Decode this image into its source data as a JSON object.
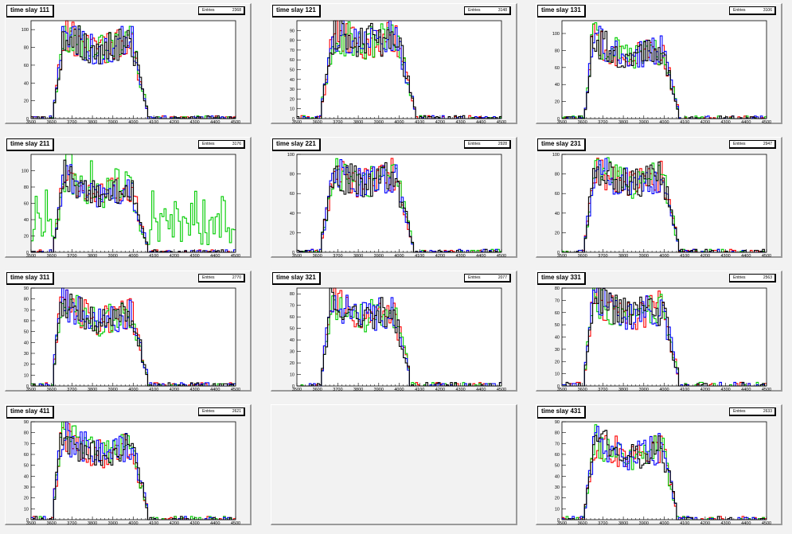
{
  "chart_data": [
    {
      "type": "histogram",
      "title": "time slay 111",
      "stats_label": "Entries",
      "entries": "2368",
      "xlim": [
        3500,
        4500
      ],
      "ylim": [
        0,
        110
      ],
      "xticks": [
        "3500",
        "3600",
        "3700",
        "3800",
        "3900",
        "4000",
        "4100",
        "4200",
        "4300",
        "4400",
        "4500"
      ],
      "yticks": [
        "0",
        "20",
        "40",
        "60",
        "80",
        "100"
      ],
      "profile": {
        "rise_start": 3605,
        "rise_end": 3660,
        "plateau": [
          95,
          75,
          90
        ],
        "fall_start": 3990,
        "fall_end": 4070,
        "tail": 3,
        "dip": 0
      },
      "series_colors": [
        "#ff0000",
        "#00cc00",
        "#0000ff",
        "#000000"
      ]
    },
    {
      "type": "histogram",
      "title": "time slay 121",
      "stats_label": "Entries",
      "entries": "3148",
      "xlim": [
        3500,
        4500
      ],
      "ylim": [
        0,
        100
      ],
      "xticks": [
        "3500",
        "3600",
        "3700",
        "3800",
        "3900",
        "4000",
        "4100",
        "4200",
        "4300",
        "4400",
        "4500"
      ],
      "yticks": [
        "0",
        "10",
        "20",
        "30",
        "40",
        "50",
        "60",
        "70",
        "80",
        "90"
      ],
      "profile": {
        "rise_start": 3610,
        "rise_end": 3680,
        "plateau": [
          85,
          78,
          85
        ],
        "fall_start": 3990,
        "fall_end": 4080,
        "tail": 2,
        "dip": 0
      },
      "series_colors": [
        "#ff0000",
        "#00cc00",
        "#0000ff",
        "#000000"
      ]
    },
    {
      "type": "histogram",
      "title": "time slay 131",
      "stats_label": "Entries",
      "entries": "3106",
      "xlim": [
        3500,
        4500
      ],
      "ylim": [
        0,
        115
      ],
      "xticks": [
        "3500",
        "3600",
        "3700",
        "3800",
        "3900",
        "4000",
        "4100",
        "4200",
        "4300",
        "4400",
        "4500"
      ],
      "yticks": [
        "0",
        "20",
        "40",
        "60",
        "80",
        "100"
      ],
      "profile": {
        "rise_start": 3610,
        "rise_end": 3650,
        "plateau": [
          95,
          70,
          80
        ],
        "fall_start": 3990,
        "fall_end": 4070,
        "tail": 3,
        "dip": 0
      },
      "series_colors": [
        "#ff0000",
        "#00cc00",
        "#0000ff",
        "#000000"
      ]
    },
    {
      "type": "histogram",
      "title": "time slay 211",
      "stats_label": "Entries",
      "entries": "3176",
      "xlim": [
        3500,
        4500
      ],
      "ylim": [
        0,
        120
      ],
      "xticks": [
        "3500",
        "3600",
        "3700",
        "3800",
        "3900",
        "4000",
        "4100",
        "4200",
        "4300",
        "4400",
        "4500"
      ],
      "yticks": [
        "0",
        "20",
        "40",
        "60",
        "80",
        "100"
      ],
      "profile": {
        "rise_start": 3605,
        "rise_end": 3660,
        "plateau": [
          95,
          70,
          80
        ],
        "fall_start": 3990,
        "fall_end": 4070,
        "tail": 2,
        "dip": 0
      },
      "noisy_series": 1,
      "series_colors": [
        "#ff0000",
        "#00cc00",
        "#0000ff",
        "#000000"
      ]
    },
    {
      "type": "histogram",
      "title": "time slay 221",
      "stats_label": "Entries",
      "entries": "2928",
      "xlim": [
        3500,
        4500
      ],
      "ylim": [
        0,
        100
      ],
      "xticks": [
        "3500",
        "3600",
        "3700",
        "3800",
        "3900",
        "4000",
        "4100",
        "4200",
        "4300",
        "4400",
        "4500"
      ],
      "yticks": [
        "0",
        "20",
        "40",
        "60",
        "80",
        "100"
      ],
      "profile": {
        "rise_start": 3610,
        "rise_end": 3680,
        "plateau": [
          80,
          70,
          80
        ],
        "fall_start": 3980,
        "fall_end": 4070,
        "tail": 2,
        "dip": 0
      },
      "series_colors": [
        "#ff0000",
        "#00cc00",
        "#0000ff",
        "#000000"
      ]
    },
    {
      "type": "histogram",
      "title": "time slay 231",
      "stats_label": "Entries",
      "entries": "2947",
      "xlim": [
        3500,
        4500
      ],
      "ylim": [
        0,
        100
      ],
      "xticks": [
        "3500",
        "3600",
        "3700",
        "3800",
        "3900",
        "4000",
        "4100",
        "4200",
        "4300",
        "4400",
        "4500"
      ],
      "yticks": [
        "0",
        "20",
        "40",
        "60",
        "80",
        "100"
      ],
      "profile": {
        "rise_start": 3605,
        "rise_end": 3660,
        "plateau": [
          85,
          70,
          78
        ],
        "fall_start": 3990,
        "fall_end": 4070,
        "tail": 3,
        "dip": 0
      },
      "series_colors": [
        "#ff0000",
        "#00cc00",
        "#0000ff",
        "#000000"
      ]
    },
    {
      "type": "histogram",
      "title": "time slay 311",
      "stats_label": "Entries",
      "entries": "2770",
      "xlim": [
        3500,
        4500
      ],
      "ylim": [
        0,
        90
      ],
      "xticks": [
        "3500",
        "3600",
        "3700",
        "3800",
        "3900",
        "4000",
        "4100",
        "4200",
        "4300",
        "4400",
        "4500"
      ],
      "yticks": [
        "0",
        "10",
        "20",
        "30",
        "40",
        "50",
        "60",
        "70",
        "80",
        "90"
      ],
      "profile": {
        "rise_start": 3600,
        "rise_end": 3650,
        "plateau": [
          80,
          58,
          68
        ],
        "fall_start": 3990,
        "fall_end": 4070,
        "tail": 3,
        "dip": 0
      },
      "series_colors": [
        "#ff0000",
        "#00cc00",
        "#0000ff",
        "#000000"
      ]
    },
    {
      "type": "histogram",
      "title": "time slay 321",
      "stats_label": "Entries",
      "entries": "2077",
      "xlim": [
        3500,
        4500
      ],
      "ylim": [
        0,
        85
      ],
      "xticks": [
        "3500",
        "3600",
        "3700",
        "3800",
        "3900",
        "4000",
        "4100",
        "4200",
        "4300",
        "4400",
        "4500"
      ],
      "yticks": [
        "0",
        "10",
        "20",
        "30",
        "40",
        "50",
        "60",
        "70",
        "80"
      ],
      "profile": {
        "rise_start": 3615,
        "rise_end": 3665,
        "plateau": [
          72,
          60,
          65
        ],
        "fall_start": 3975,
        "fall_end": 4060,
        "tail": 2,
        "dip": 0
      },
      "series_colors": [
        "#ff0000",
        "#00cc00",
        "#0000ff",
        "#000000"
      ]
    },
    {
      "type": "histogram",
      "title": "time slay 331",
      "stats_label": "Entries",
      "entries": "2563",
      "xlim": [
        3500,
        4500
      ],
      "ylim": [
        0,
        80
      ],
      "xticks": [
        "3500",
        "3600",
        "3700",
        "3800",
        "3900",
        "4000",
        "4100",
        "4200",
        "4300",
        "4400",
        "4500"
      ],
      "yticks": [
        "0",
        "10",
        "20",
        "30",
        "40",
        "50",
        "60",
        "70",
        "80"
      ],
      "profile": {
        "rise_start": 3605,
        "rise_end": 3650,
        "plateau": [
          72,
          58,
          64
        ],
        "fall_start": 3990,
        "fall_end": 4070,
        "tail": 3,
        "dip": 0
      },
      "series_colors": [
        "#ff0000",
        "#00cc00",
        "#0000ff",
        "#000000"
      ]
    },
    {
      "type": "histogram",
      "title": "time slay 411",
      "stats_label": "Entries",
      "entries": "2621",
      "xlim": [
        3500,
        4500
      ],
      "ylim": [
        0,
        90
      ],
      "xticks": [
        "3500",
        "3600",
        "3700",
        "3800",
        "3900",
        "4000",
        "4100",
        "4200",
        "4300",
        "4400",
        "4500"
      ],
      "yticks": [
        "0",
        "10",
        "20",
        "30",
        "40",
        "50",
        "60",
        "70",
        "80",
        "90"
      ],
      "profile": {
        "rise_start": 3600,
        "rise_end": 3650,
        "plateau": [
          78,
          60,
          66
        ],
        "fall_start": 3995,
        "fall_end": 4070,
        "tail": 3,
        "dip": 0
      },
      "series_colors": [
        "#ff0000",
        "#00cc00",
        "#0000ff",
        "#000000"
      ]
    },
    null,
    {
      "type": "histogram",
      "title": "time slay 431",
      "stats_label": "Entries",
      "entries": "2633",
      "xlim": [
        3500,
        4500
      ],
      "ylim": [
        0,
        90
      ],
      "xticks": [
        "3500",
        "3600",
        "3700",
        "3800",
        "3900",
        "4000",
        "4100",
        "4200",
        "4300",
        "4400",
        "4500"
      ],
      "yticks": [
        "0",
        "10",
        "20",
        "30",
        "40",
        "50",
        "60",
        "70",
        "80",
        "90"
      ],
      "profile": {
        "rise_start": 3605,
        "rise_end": 3660,
        "plateau": [
          72,
          58,
          66
        ],
        "fall_start": 3990,
        "fall_end": 4060,
        "tail": 3,
        "dip": 0
      },
      "series_colors": [
        "#ff0000",
        "#00cc00",
        "#0000ff",
        "#000000"
      ]
    }
  ]
}
